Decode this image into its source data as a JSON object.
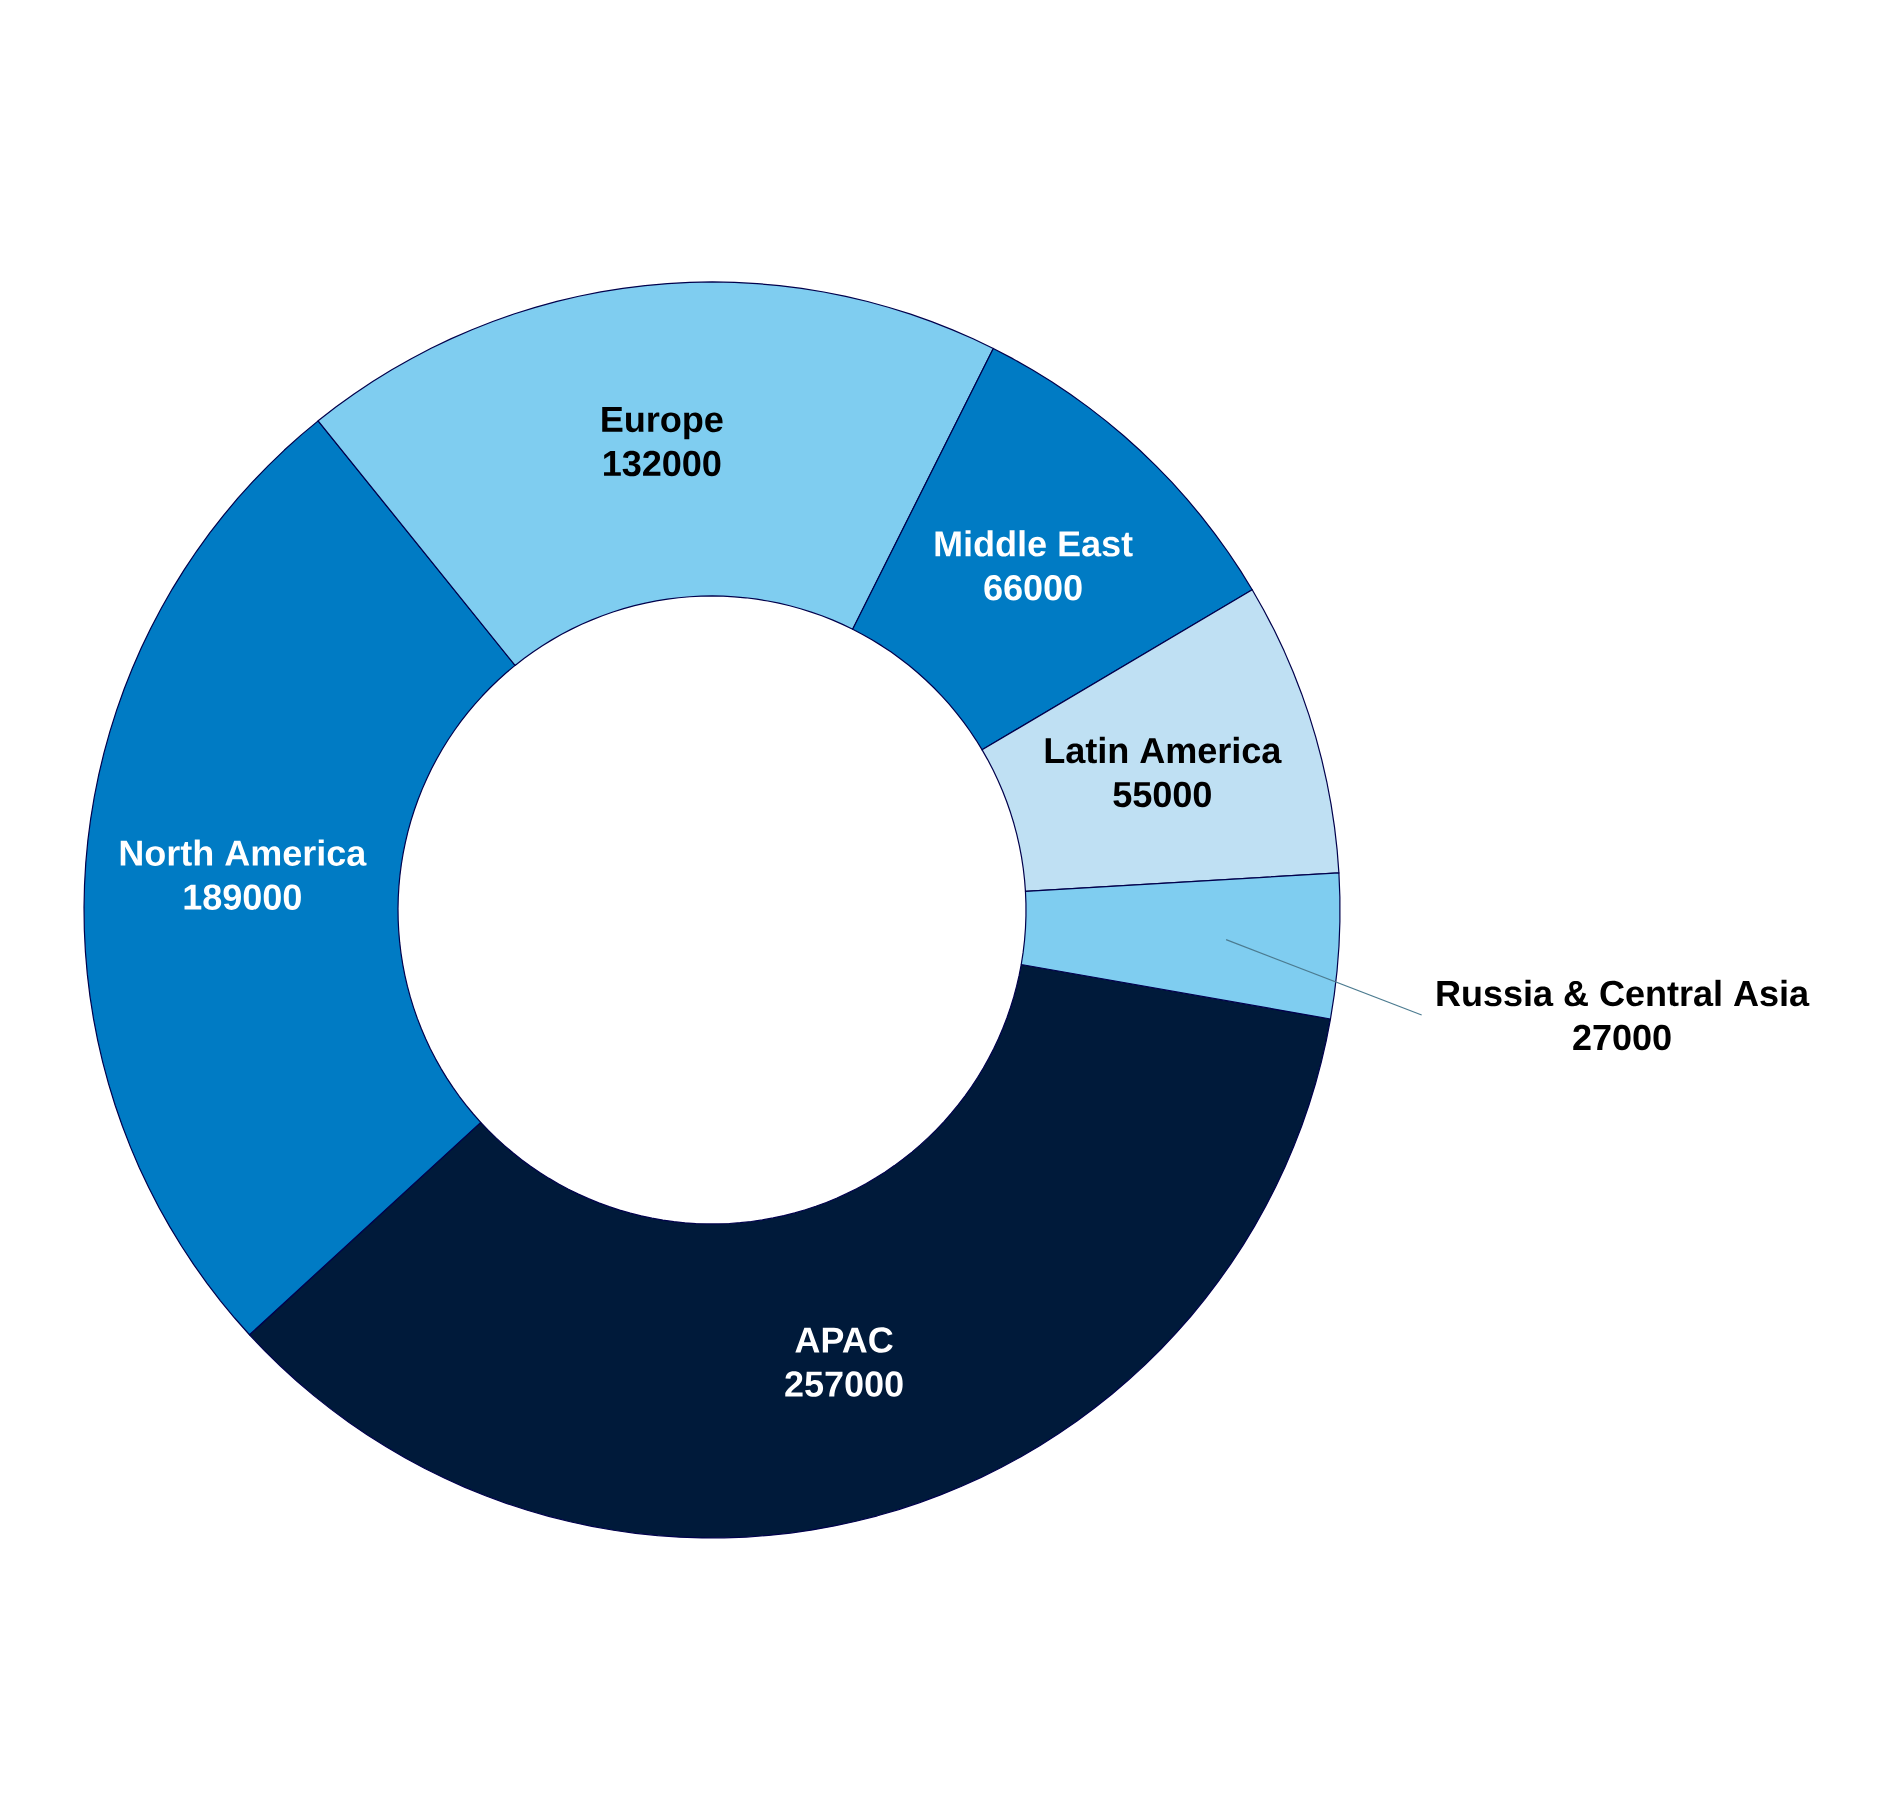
{
  "chart_data": {
    "type": "donut",
    "categories": [
      "APAC",
      "North America",
      "Europe",
      "Middle East",
      "Latin America",
      "Russia & Central Asia"
    ],
    "values": [
      257000,
      189000,
      132000,
      66000,
      55000,
      27000
    ],
    "colors": [
      "#001a3a",
      "#007bc4",
      "#7fcdf0",
      "#007bc4",
      "#bfe0f3",
      "#7fcdf0"
    ],
    "data_labels": true
  }
}
